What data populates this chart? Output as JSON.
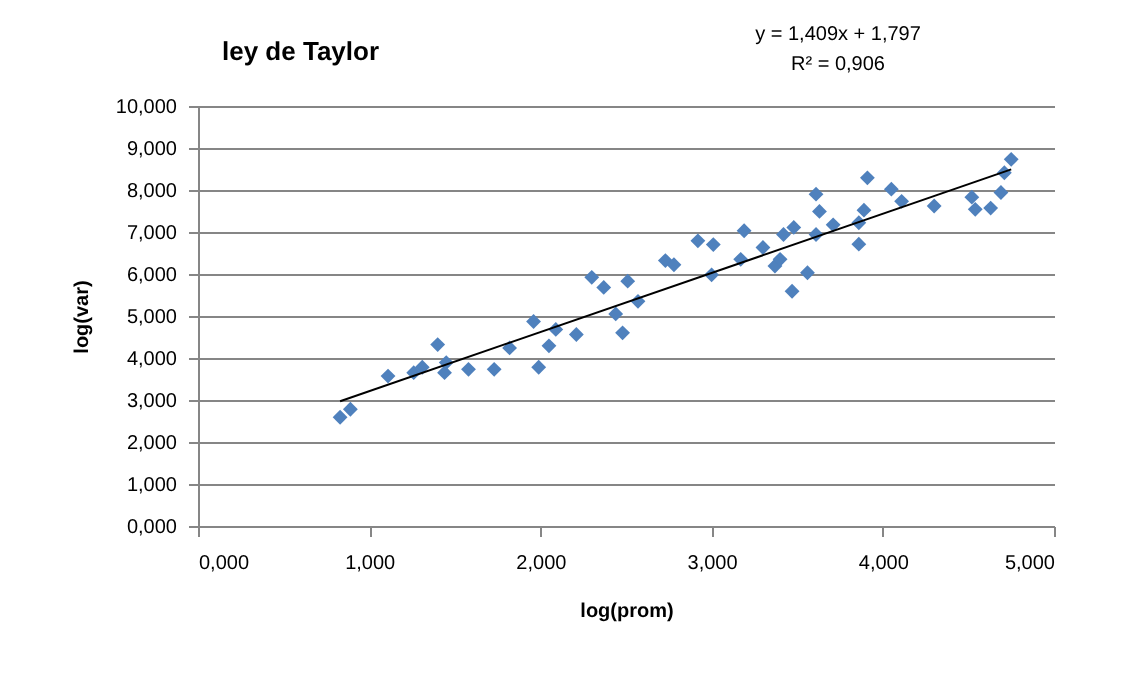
{
  "chart_data": {
    "type": "scatter",
    "title": "ley de Taylor",
    "xlabel": "log(prom)",
    "ylabel": "log(var)",
    "annotations": [
      "y = 1,409x + 1,797",
      "R² = 0,906"
    ],
    "xlim": [
      0,
      5
    ],
    "ylim": [
      0,
      10
    ],
    "xticks": [
      {
        "value": 0,
        "label": "0,000"
      },
      {
        "value": 1,
        "label": "1,000"
      },
      {
        "value": 2,
        "label": "2,000"
      },
      {
        "value": 3,
        "label": "3,000"
      },
      {
        "value": 4,
        "label": "4,000"
      },
      {
        "value": 5,
        "label": "5,000"
      }
    ],
    "yticks": [
      {
        "value": 0,
        "label": "0,000"
      },
      {
        "value": 1,
        "label": "1,000"
      },
      {
        "value": 2,
        "label": "2,000"
      },
      {
        "value": 3,
        "label": "3,000"
      },
      {
        "value": 4,
        "label": "4,000"
      },
      {
        "value": 5,
        "label": "5,000"
      },
      {
        "value": 6,
        "label": "6,000"
      },
      {
        "value": 7,
        "label": "7,000"
      },
      {
        "value": 8,
        "label": "8,000"
      },
      {
        "value": 9,
        "label": "9,000"
      },
      {
        "value": 10,
        "label": "10,000"
      }
    ],
    "grid": "y",
    "series": [
      {
        "color": "#4f81bd",
        "marker": "diamond",
        "x": [
          0.83,
          0.89,
          1.11,
          1.26,
          1.31,
          1.4,
          1.44,
          1.45,
          1.58,
          1.73,
          1.82,
          1.96,
          1.99,
          2.05,
          2.09,
          2.21,
          2.3,
          2.37,
          2.44,
          2.48,
          2.51,
          2.57,
          2.73,
          2.78,
          2.92,
          3.01,
          3.0,
          3.17,
          3.19,
          3.3,
          3.37,
          3.4,
          3.42,
          3.48,
          3.47,
          3.56,
          3.61,
          3.63,
          3.61,
          3.71,
          3.86,
          3.86,
          3.89,
          3.91,
          4.05,
          4.11,
          4.3,
          4.52,
          4.54,
          4.63,
          4.69,
          4.71,
          4.75
        ],
        "values": [
          2.59,
          2.78,
          3.57,
          3.65,
          3.78,
          4.32,
          3.65,
          3.89,
          3.73,
          3.73,
          4.24,
          4.87,
          3.78,
          4.29,
          4.68,
          4.56,
          5.92,
          5.68,
          5.05,
          4.6,
          5.83,
          5.35,
          6.32,
          6.22,
          6.79,
          6.7,
          5.98,
          6.35,
          7.03,
          6.63,
          6.19,
          6.35,
          6.94,
          7.11,
          5.59,
          6.03,
          7.9,
          7.49,
          6.94,
          7.17,
          7.22,
          6.71,
          7.52,
          8.29,
          8.02,
          7.73,
          7.62,
          7.83,
          7.54,
          7.57,
          7.94,
          8.41,
          8.73
        ]
      },
      {
        "type": "line",
        "color": "#000000",
        "x": [
          0.83,
          4.75
        ],
        "values": [
          2.97,
          8.49
        ]
      }
    ]
  }
}
